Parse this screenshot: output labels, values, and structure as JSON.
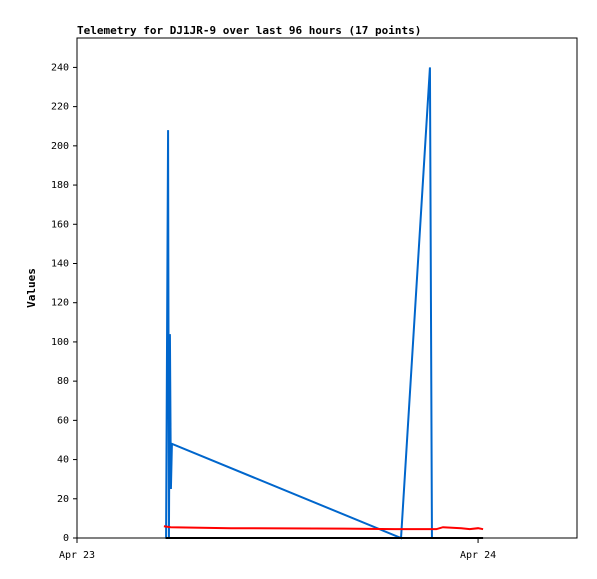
{
  "chart_data": {
    "type": "line",
    "title": "Telemetry for DJ1JR-9 over last 96 hours (17 points)",
    "y_label": "Values",
    "xlim": [
      0,
      29.92
    ],
    "ylim": [
      0,
      255
    ],
    "xticks": [
      {
        "value": 0,
        "label": "Apr 23"
      },
      {
        "value": 24,
        "label": "Apr 24"
      }
    ],
    "yticks": [
      0,
      20,
      40,
      60,
      80,
      100,
      120,
      140,
      160,
      180,
      200,
      220,
      240
    ],
    "series": [
      {
        "color": "#0066cc",
        "x": [
          5.33,
          5.45,
          5.5,
          5.56,
          5.62,
          5.68,
          19.39,
          21.12,
          21.18,
          21.24
        ],
        "values": [
          0,
          208,
          0,
          104,
          25,
          48,
          0,
          240,
          120,
          0
        ]
      },
      {
        "color": "#ff0000",
        "x": [
          5.2,
          5.6,
          9.2,
          16,
          19,
          21.5,
          21.9,
          23,
          23.5,
          24,
          24.3
        ],
        "values": [
          6,
          5.5,
          5,
          4.8,
          4.5,
          4.5,
          5.5,
          5,
          4.5,
          5,
          4.5
        ]
      },
      {
        "color": "#000000",
        "x": [
          5.3,
          24.3
        ],
        "values": [
          0,
          0
        ]
      }
    ]
  }
}
